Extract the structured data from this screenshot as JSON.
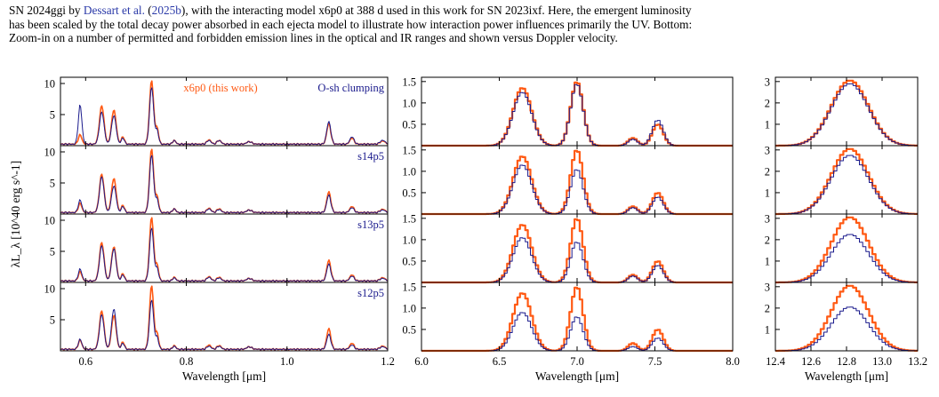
{
  "caption": {
    "line1_pre": "SN 2024ggi by ",
    "line1_link1": "Dessart et al.",
    "line1_mid": " (",
    "line1_link2": "2025b",
    "line1_post": "), with the interacting model x6p0 at 388 d used in this work for SN 2023ixf. Here, the emergent luminosity",
    "line2": "has been scaled by the total decay power absorbed in each ejecta model to illustrate how interaction power influences primarily the UV. Bottom:",
    "line3": "Zoom-in on a number of permitted and forbidden emission lines in the optical and IR ranges and shown versus Doppler velocity."
  },
  "figure": {
    "ylabel": "λL_λ [10^40 erg s^-1]",
    "xlabel": "Wavelength [μm]",
    "colors": {
      "x6p0": "#ff5a14",
      "other": "#1a1a8c"
    },
    "row_labels": [
      {
        "left": "x6p0 (this work)",
        "right": "O-sh clumping"
      },
      {
        "right": "s14p5"
      },
      {
        "right": "s13p5"
      },
      {
        "right": "s12p5"
      }
    ]
  },
  "chart_data": [
    {
      "type": "line",
      "panel": "left",
      "xlim": [
        0.55,
        1.2
      ],
      "ylim": [
        0,
        11
      ],
      "xticks": [
        "0.6",
        "0.8",
        "1.0",
        "1.2"
      ],
      "yticks": [
        "5",
        "10"
      ],
      "lines": [
        {
          "center": 0.589,
          "width": 0.0035,
          "height": {
            "x6p0": 1.5,
            "rows": [
              6.3,
              2.0,
              1.9,
              1.6
            ]
          }
        },
        {
          "center": 0.632,
          "width": 0.0045,
          "height": {
            "x6p0": 6.2,
            "rows": [
              5.2,
              5.8,
              5.7,
              5.6
            ]
          }
        },
        {
          "center": 0.656,
          "width": 0.0045,
          "height": {
            "x6p0": 5.5,
            "rows": [
              4.6,
              4.3,
              5.2,
              6.5
            ]
          }
        },
        {
          "center": 0.674,
          "width": 0.003,
          "height": {
            "x6p0": 1.2,
            "rows": [
              1.0,
              1.0,
              1.0,
              1.0
            ]
          }
        },
        {
          "center": 0.731,
          "width": 0.004,
          "height": {
            "x6p0": 10.3,
            "rows": [
              9.2,
              9.3,
              8.6,
              8.0
            ]
          }
        },
        {
          "center": 0.742,
          "width": 0.003,
          "height": {
            "x6p0": 2.5,
            "rows": [
              2.2,
              2.1,
              2.0,
              1.9
            ]
          }
        },
        {
          "center": 0.776,
          "width": 0.003,
          "height": {
            "x6p0": 0.6,
            "rows": [
              0.6,
              0.6,
              0.5,
              0.5
            ]
          }
        },
        {
          "center": 0.845,
          "width": 0.004,
          "height": {
            "x6p0": 0.7,
            "rows": [
              0.6,
              0.6,
              0.6,
              0.5
            ]
          }
        },
        {
          "center": 0.865,
          "width": 0.004,
          "height": {
            "x6p0": 0.6,
            "rows": [
              0.6,
              0.5,
              0.5,
              0.5
            ]
          }
        },
        {
          "center": 0.925,
          "width": 0.005,
          "height": {
            "x6p0": 0.4,
            "rows": [
              0.4,
              0.4,
              0.4,
              0.4
            ]
          }
        },
        {
          "center": 1.083,
          "width": 0.004,
          "height": {
            "x6p0": 3.3,
            "rows": [
              3.6,
              2.8,
              2.7,
              2.4
            ]
          }
        },
        {
          "center": 1.129,
          "width": 0.004,
          "height": {
            "x6p0": 1.0,
            "rows": [
              1.2,
              0.8,
              0.8,
              0.7
            ]
          }
        },
        {
          "center": 1.19,
          "width": 0.005,
          "height": {
            "x6p0": 0.5,
            "rows": [
              0.6,
              0.4,
              0.4,
              0.4
            ]
          }
        }
      ]
    },
    {
      "type": "line",
      "panel": "middle",
      "xlim": [
        6.0,
        8.0
      ],
      "ylim": [
        0,
        1.6
      ],
      "xticks": [
        "6.0",
        "6.5",
        "7.0",
        "7.5",
        "8.0"
      ],
      "yticks": [
        "0.5",
        "1.0",
        "1.5"
      ],
      "lines": [
        {
          "center": 6.64,
          "width": 0.06,
          "height": {
            "x6p0": 1.35,
            "rows": [
              1.25,
              1.15,
              1.05,
              0.9
            ]
          }
        },
        {
          "center": 6.99,
          "width": 0.04,
          "height": {
            "x6p0": 1.5,
            "rows": [
              1.45,
              1.05,
              0.95,
              0.8
            ]
          }
        },
        {
          "center": 7.35,
          "width": 0.03,
          "height": {
            "x6p0": 0.18,
            "rows": [
              0.15,
              0.15,
              0.15,
              0.1
            ]
          }
        },
        {
          "center": 7.51,
          "width": 0.035,
          "height": {
            "x6p0": 0.5,
            "rows": [
              0.6,
              0.4,
              0.4,
              0.3
            ]
          }
        }
      ]
    },
    {
      "type": "line",
      "panel": "right",
      "xlim": [
        12.4,
        13.2
      ],
      "ylim": [
        0,
        3.2
      ],
      "xticks": [
        "12.4",
        "12.6",
        "12.8",
        "13.0",
        "13.2"
      ],
      "yticks": [
        "1",
        "2",
        "3"
      ],
      "lines": [
        {
          "center": 12.81,
          "width": 0.105,
          "height": {
            "x6p0": 3.05,
            "rows": [
              2.9,
              2.75,
              2.25,
              2.05
            ]
          }
        }
      ]
    }
  ]
}
